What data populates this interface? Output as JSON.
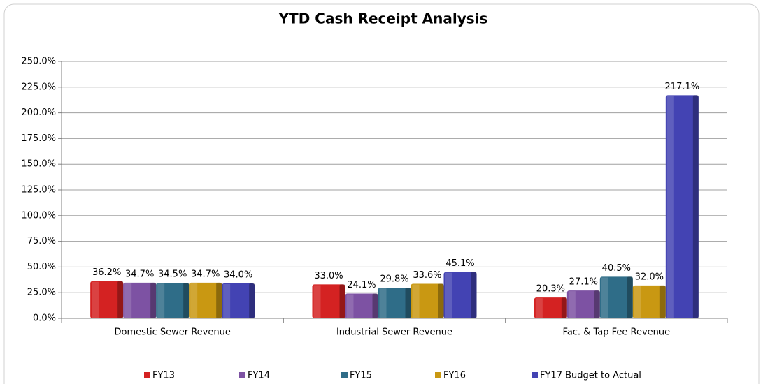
{
  "chart_data": {
    "type": "bar",
    "title": "YTD Cash Receipt Analysis",
    "categories": [
      "Domestic Sewer Revenue",
      "Industrial Sewer Revenue",
      "Fac. & Tap Fee Revenue"
    ],
    "series": [
      {
        "name": "FY13",
        "color": "#d42222",
        "values": [
          36.2,
          33.0,
          20.3
        ],
        "value_labels": [
          "36.2%",
          "33.0%",
          "20.3%"
        ]
      },
      {
        "name": "FY14",
        "color": "#7d52a3",
        "values": [
          34.7,
          24.1,
          27.1
        ],
        "value_labels": [
          "34.7%",
          "24.1%",
          "27.1%"
        ]
      },
      {
        "name": "FY15",
        "color": "#2f6d88",
        "values": [
          34.5,
          29.8,
          40.5
        ],
        "value_labels": [
          "34.5%",
          "29.8%",
          "40.5%"
        ]
      },
      {
        "name": "FY16",
        "color": "#c99812",
        "values": [
          34.7,
          33.6,
          32.0
        ],
        "value_labels": [
          "34.7%",
          "33.6%",
          "32.0%"
        ]
      },
      {
        "name": "FY17 Budget to Actual",
        "color": "#4343b3",
        "values": [
          34.0,
          45.1,
          217.1
        ],
        "value_labels": [
          "34.0%",
          "45.1%",
          "217.1%"
        ]
      }
    ],
    "ylim": [
      0,
      250
    ],
    "yticks": [
      {
        "value": 0,
        "label": "0.0%"
      },
      {
        "value": 25,
        "label": "25.0%"
      },
      {
        "value": 50,
        "label": "50.0%"
      },
      {
        "value": 75,
        "label": "75.0%"
      },
      {
        "value": 100,
        "label": "100.0%"
      },
      {
        "value": 125,
        "label": "125.0%"
      },
      {
        "value": 150,
        "label": "150.0%"
      },
      {
        "value": 175,
        "label": "175.0%"
      },
      {
        "value": 200,
        "label": "200.0%"
      },
      {
        "value": 225,
        "label": "225.0%"
      },
      {
        "value": 250,
        "label": "250.0%"
      }
    ],
    "grid": true,
    "legend": "bottom"
  }
}
